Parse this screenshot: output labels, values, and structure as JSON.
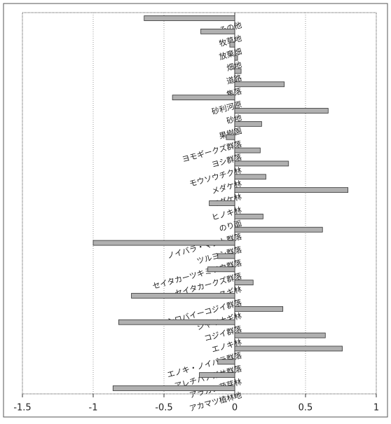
{
  "chart_data": {
    "type": "hbar",
    "categories": [
      "その他",
      "牧草地",
      "放棄畑",
      "畑地",
      "道路",
      "集落",
      "砂利河原",
      "砂地",
      "果樹園",
      "ヨモギークズ群落",
      "ヨシ群落",
      "モウソウチク林",
      "メダケ林",
      "マダケ林",
      "ヒノキ林",
      "のり面",
      "ノイバラ・マント群落",
      "ツルヨシ群落",
      "セイタカーツキミソウ群落",
      "セイタカークズ群落",
      "スギ林",
      "シロバイーコジイ群落",
      "シャヤナギ林",
      "コジイ群落",
      "エノキ林",
      "エノキ・ノイバラ群落",
      "アレチハナガサ群落",
      "アラカシ萌芽林",
      "アカマツ植林地"
    ],
    "values": [
      -0.64,
      -0.24,
      -0.035,
      0.02,
      0.045,
      0.35,
      -0.44,
      0.66,
      0.19,
      -0.06,
      0.18,
      0.38,
      0.22,
      0.8,
      -0.18,
      0.2,
      0.62,
      -1.0,
      -0.12,
      -0.19,
      0.13,
      -0.73,
      0.34,
      -0.82,
      0.64,
      0.76,
      -0.12,
      -0.25,
      -0.86
    ],
    "color": "#b0b0b0",
    "xlim": [
      -1.5,
      1
    ],
    "xticks": [
      -1.5,
      -1,
      -0.5,
      0,
      0.5,
      1
    ],
    "grid": true
  }
}
